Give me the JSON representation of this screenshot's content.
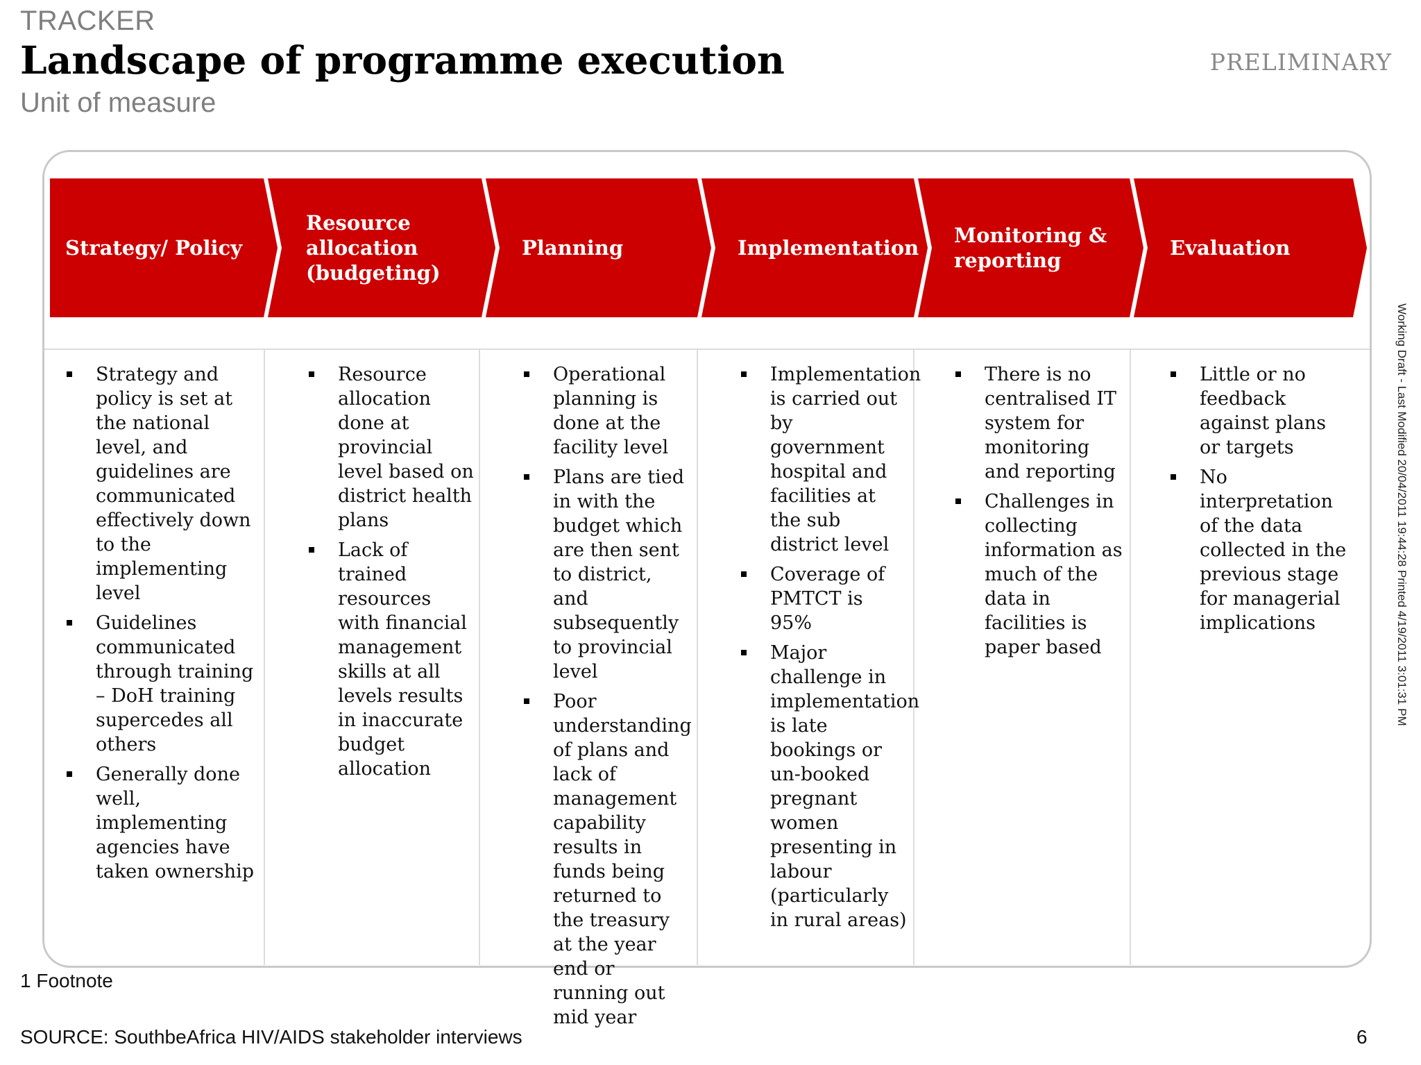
{
  "header": {
    "tracker": "TRACKER",
    "title": "Landscape of programme execution",
    "subtitle": "Unit of measure",
    "status": "PRELIMINARY"
  },
  "colors": {
    "chevron_red": "#cc0000",
    "tracker_grey": "#7f7f7f"
  },
  "stages": [
    {
      "label": "Strategy/ Policy",
      "bullets": [
        "Strategy and policy is set at the national level, and guidelines are communicated effectively down to the implementing level",
        "Guidelines communicated through training – DoH training supercedes all others",
        "Generally done well, implementing agencies have taken ownership"
      ]
    },
    {
      "label": "Resource allocation (budgeting)",
      "bullets": [
        "Resource allocation done at provincial level based on district health plans",
        "Lack of trained resources with financial management skills at all levels results in inaccurate budget allocation"
      ]
    },
    {
      "label": "Planning",
      "bullets": [
        "Operational planning is done at the facility level",
        "Plans are tied in with the budget which are then sent to district, and subsequently to provincial level",
        "Poor understanding of plans and lack of management capability results in funds being returned to the treasury at the year end or running out mid year"
      ]
    },
    {
      "label": "Implementation",
      "bullets": [
        "Implementation is carried out by government hospital and facilities at the sub district level",
        "Coverage of PMTCT is 95%",
        "Major challenge in implementation is late bookings or un-booked pregnant women presenting in labour (particularly in rural areas)"
      ]
    },
    {
      "label": "Monitoring & reporting",
      "bullets": [
        "There is no centralised IT system for monitoring and reporting",
        "Challenges in collecting information as much of the data in facilities is paper based"
      ]
    },
    {
      "label": "Evaluation",
      "bullets": [
        "Little or no feedback against plans or targets",
        "No interpretation of the data collected in the previous stage for managerial implications"
      ]
    }
  ],
  "footer": {
    "footnote": "1 Footnote",
    "source": "SOURCE: SouthbeAfrica HIV/AIDS stakeholder interviews",
    "page": "6",
    "side_note": "Working Draft - Last Modified 20/04/2011 19:44:28 Printed 4/19/2011 3:01:31 PM"
  }
}
